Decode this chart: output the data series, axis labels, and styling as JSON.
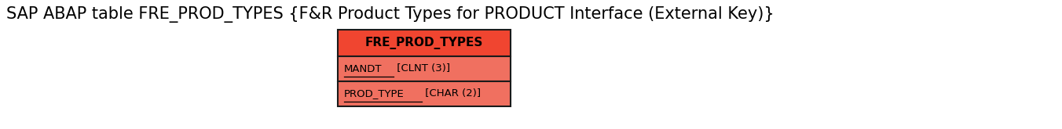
{
  "title": "SAP ABAP table FRE_PROD_TYPES {F&R Product Types for PRODUCT Interface (External Key)}",
  "title_fontsize": 15,
  "entity_name": "FRE_PROD_TYPES",
  "fields": [
    {
      "name": "MANDT",
      "type": " [CLNT (3)]"
    },
    {
      "name": "PROD_TYPE",
      "type": " [CHAR (2)]"
    }
  ],
  "entity_header_color": "#f04530",
  "entity_field_color": "#f07060",
  "entity_border_color": "#1a1a1a",
  "entity_text_color": "#000000",
  "background_color": "#ffffff",
  "fig_width": 13.52,
  "fig_height": 1.65,
  "dpi": 100
}
